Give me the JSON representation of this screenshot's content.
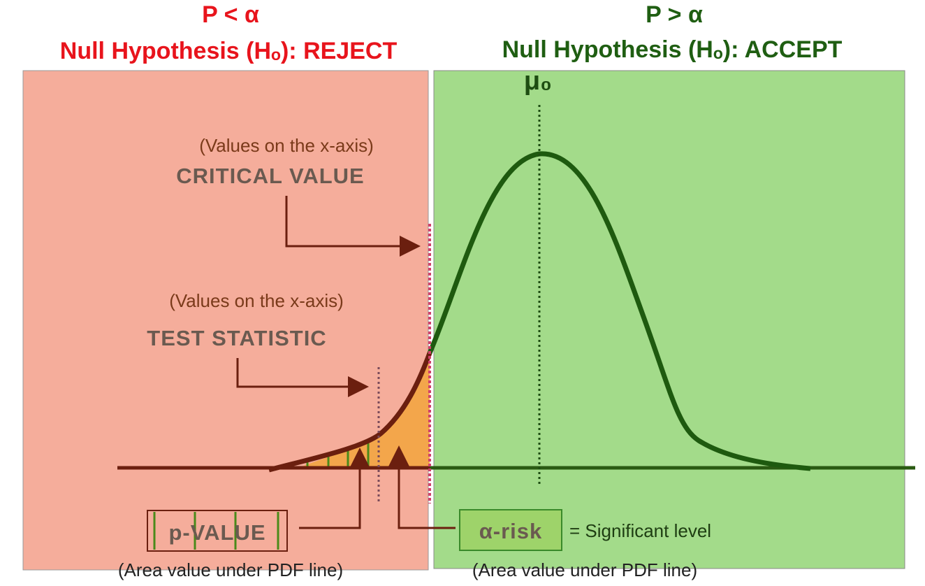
{
  "left": {
    "condition": "P < α",
    "decision": "Null Hypothesis (Hₒ): REJECT"
  },
  "right": {
    "condition": "P > α",
    "decision": "Null Hypothesis (Hₒ): ACCEPT"
  },
  "mean_label": "μ₀",
  "critical": {
    "note": "(Values on the x-axis)",
    "label": "CRITICAL VALUE"
  },
  "test": {
    "note": "(Values on the x-axis)",
    "label": "TEST STATISTIC"
  },
  "p_value": {
    "label": "p-VALUE",
    "note": "(Area value under PDF line)"
  },
  "alpha_risk": {
    "label": "α-risk",
    "meaning": "= Significant level",
    "note": "(Area value under PDF line)"
  }
}
